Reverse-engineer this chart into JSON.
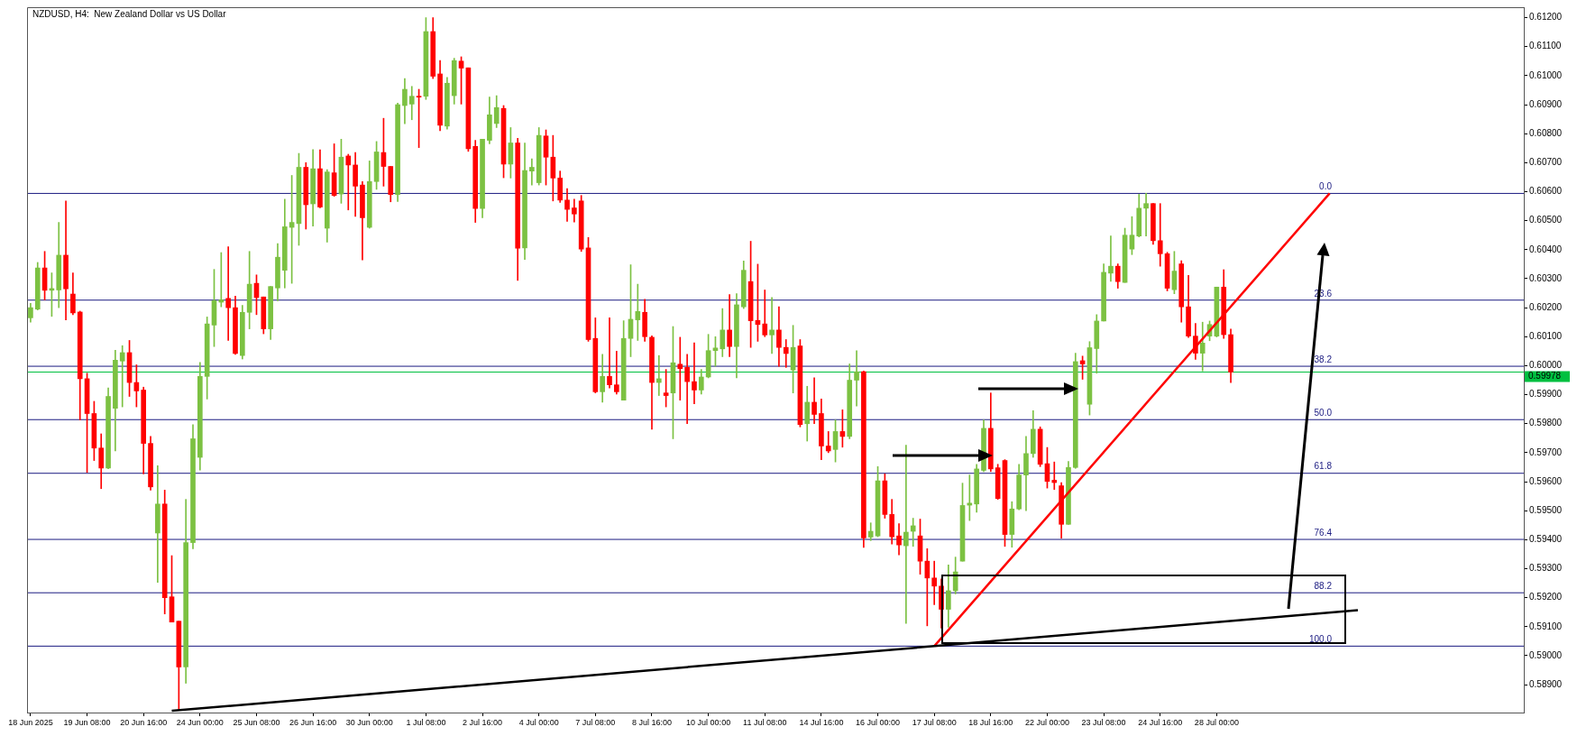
{
  "chart_data": {
    "type": "candlestick",
    "title": "NZDUSD, H4:  New Zealand Dollar vs US Dollar",
    "categories": [
      "18 Jun 2025",
      null,
      null,
      null,
      null,
      null,
      null,
      null,
      "19 Jun 08:00",
      null,
      null,
      null,
      null,
      null,
      null,
      null,
      "20 Jun 16:00",
      null,
      null,
      null,
      null,
      null,
      null,
      null,
      "24 Jun 00:00",
      null,
      null,
      null,
      null,
      null,
      null,
      null,
      "25 Jun 08:00",
      null,
      null,
      null,
      null,
      null,
      null,
      null,
      "26 Jun 16:00",
      null,
      null,
      null,
      null,
      null,
      null,
      null,
      "30 Jun 00:00",
      null,
      null,
      null,
      null,
      null,
      null,
      null,
      "1 Jul 08:00",
      null,
      null,
      null,
      null,
      null,
      null,
      null,
      "2 Jul 16:00",
      null,
      null,
      null,
      null,
      null,
      null,
      null,
      "4 Jul 00:00",
      null,
      null,
      null,
      null,
      null,
      null,
      null,
      "7 Jul 08:00",
      null,
      null,
      null,
      null,
      null,
      null,
      null,
      "8 Jul 16:00",
      null,
      null,
      null,
      null,
      null,
      null,
      null,
      "10 Jul 00:00",
      null,
      null,
      null,
      null,
      null,
      null,
      null,
      "11 Jul 08:00",
      null,
      null,
      null,
      null,
      null,
      null,
      null,
      "14 Jul 16:00",
      null,
      null,
      null,
      null,
      null,
      null,
      null,
      "16 Jul 00:00",
      null,
      null,
      null,
      null,
      null,
      null,
      null,
      "17 Jul 08:00",
      null,
      null,
      null,
      null,
      null,
      null,
      null,
      "18 Jul 16:00",
      null,
      null,
      null,
      null,
      null,
      null,
      null,
      "22 Jul 00:00",
      null,
      null,
      null,
      null,
      null,
      null,
      null,
      "23 Jul 08:00",
      null,
      null,
      null,
      null,
      null,
      null,
      null,
      "24 Jul 16:00",
      null,
      null,
      null,
      null,
      null,
      null,
      null,
      "28 Jul 00:00",
      null,
      null,
      null,
      null,
      null,
      null,
      null,
      null,
      null,
      null,
      null,
      null,
      null,
      null,
      null,
      null,
      null,
      null,
      null,
      null,
      null,
      null,
      null,
      null,
      null,
      null,
      null,
      null,
      null,
      null,
      null,
      null,
      null,
      null,
      null,
      null,
      null,
      null,
      null,
      null,
      null,
      null,
      null
    ],
    "ohlc": [
      [
        0.60165,
        0.60215,
        0.6015,
        0.602
      ],
      [
        0.60195,
        0.60356,
        0.60192,
        0.60337
      ],
      [
        0.60337,
        0.60394,
        0.60227,
        0.6026
      ],
      [
        0.6026,
        0.6032,
        0.6017,
        0.60266
      ],
      [
        0.60261,
        0.60494,
        0.602,
        0.60381
      ],
      [
        0.60381,
        0.60568,
        0.60158,
        0.60265
      ],
      [
        0.60247,
        0.6032,
        0.60176,
        0.60182
      ],
      [
        0.60185,
        0.60188,
        0.59813,
        0.59955
      ],
      [
        0.59955,
        0.59974,
        0.59632,
        0.59835
      ],
      [
        0.59835,
        0.59877,
        0.59673,
        0.59716
      ],
      [
        0.59716,
        0.59765,
        0.59576,
        0.59647
      ],
      [
        0.59647,
        0.59923,
        0.59645,
        0.59894
      ],
      [
        0.59853,
        0.60053,
        0.59706,
        0.60019
      ],
      [
        0.60016,
        0.60069,
        0.59858,
        0.60045
      ],
      [
        0.60045,
        0.60087,
        0.59894,
        0.59942
      ],
      [
        0.59942,
        0.60003,
        0.59858,
        0.59913
      ],
      [
        0.59916,
        0.59926,
        0.59627,
        0.59732
      ],
      [
        0.59732,
        0.59756,
        0.59571,
        0.59582
      ],
      [
        0.59423,
        0.59655,
        0.59253,
        0.59523
      ],
      [
        0.59523,
        0.59571,
        0.59144,
        0.592
      ],
      [
        0.59203,
        0.59345,
        0.59116,
        0.59116
      ],
      [
        0.59119,
        0.59119,
        0.58816,
        0.58961
      ],
      [
        0.58961,
        0.59539,
        0.58905,
        0.5939
      ],
      [
        0.5939,
        0.59797,
        0.59369,
        0.59748
      ],
      [
        0.59684,
        0.60011,
        0.5964,
        0.59963
      ],
      [
        0.59963,
        0.60168,
        0.59885,
        0.60144
      ],
      [
        0.6014,
        0.60332,
        0.60066,
        0.60224
      ],
      [
        0.60219,
        0.6039,
        0.60203,
        0.60227
      ],
      [
        0.60232,
        0.6041,
        0.60087,
        0.602
      ],
      [
        0.602,
        0.6024,
        0.60039,
        0.60042
      ],
      [
        0.60035,
        0.60208,
        0.60023,
        0.60184
      ],
      [
        0.60184,
        0.60394,
        0.60127,
        0.60281
      ],
      [
        0.60284,
        0.60313,
        0.60176,
        0.60235
      ],
      [
        0.60237,
        0.60237,
        0.6011,
        0.60127
      ],
      [
        0.60127,
        0.60273,
        0.6009,
        0.60273
      ],
      [
        0.60268,
        0.60421,
        0.60224,
        0.60374
      ],
      [
        0.60329,
        0.60574,
        0.60268,
        0.60479
      ],
      [
        0.60477,
        0.60656,
        0.60284,
        0.60494
      ],
      [
        0.6049,
        0.60732,
        0.60415,
        0.60684
      ],
      [
        0.60684,
        0.607,
        0.60471,
        0.60555
      ],
      [
        0.60558,
        0.60745,
        0.60481,
        0.60679
      ],
      [
        0.60679,
        0.60744,
        0.60544,
        0.60547
      ],
      [
        0.60474,
        0.60676,
        0.60426,
        0.60668
      ],
      [
        0.60665,
        0.60765,
        0.60584,
        0.60587
      ],
      [
        0.60592,
        0.60781,
        0.6056,
        0.60719
      ],
      [
        0.60723,
        0.60729,
        0.60537,
        0.60692
      ],
      [
        0.60692,
        0.60735,
        0.60515,
        0.60619
      ],
      [
        0.60623,
        0.60635,
        0.60365,
        0.6051
      ],
      [
        0.60477,
        0.60706,
        0.60474,
        0.60635
      ],
      [
        0.60635,
        0.60773,
        0.60608,
        0.60737
      ],
      [
        0.60735,
        0.60853,
        0.60619,
        0.60687
      ],
      [
        0.60687,
        0.60687,
        0.60565,
        0.6059
      ],
      [
        0.6059,
        0.60905,
        0.60566,
        0.609
      ],
      [
        0.60897,
        0.6099,
        0.60834,
        0.60953
      ],
      [
        0.60902,
        0.60963,
        0.60848,
        0.60929
      ],
      [
        0.60929,
        0.60953,
        0.60752,
        0.60926
      ],
      [
        0.60929,
        0.612,
        0.60918,
        0.61152
      ],
      [
        0.61152,
        0.612,
        0.6099,
        0.60998
      ],
      [
        0.61006,
        0.61052,
        0.6081,
        0.60829
      ],
      [
        0.60826,
        0.60994,
        0.60816,
        0.60974
      ],
      [
        0.60931,
        0.6106,
        0.60902,
        0.61052
      ],
      [
        0.6105,
        0.61065,
        0.60902,
        0.61026
      ],
      [
        0.61027,
        0.61027,
        0.60739,
        0.60748
      ],
      [
        0.60756,
        0.60777,
        0.60494,
        0.60542
      ],
      [
        0.60542,
        0.60781,
        0.6051,
        0.60781
      ],
      [
        0.60777,
        0.60926,
        0.60765,
        0.60865
      ],
      [
        0.60835,
        0.60931,
        0.60821,
        0.6089
      ],
      [
        0.60887,
        0.60897,
        0.60648,
        0.60695
      ],
      [
        0.60695,
        0.60821,
        0.60647,
        0.60768
      ],
      [
        0.60768,
        0.60784,
        0.60294,
        0.60405
      ],
      [
        0.60406,
        0.60768,
        0.60366,
        0.60673
      ],
      [
        0.60671,
        0.60713,
        0.60623,
        0.60684
      ],
      [
        0.60631,
        0.60821,
        0.60623,
        0.60794
      ],
      [
        0.60792,
        0.60813,
        0.60623,
        0.60719
      ],
      [
        0.60719,
        0.60794,
        0.60568,
        0.60647
      ],
      [
        0.60647,
        0.60671,
        0.60563,
        0.60571
      ],
      [
        0.60571,
        0.60611,
        0.60498,
        0.60539
      ],
      [
        0.60544,
        0.60574,
        0.60495,
        0.60523
      ],
      [
        0.60568,
        0.60587,
        0.60394,
        0.60402
      ],
      [
        0.60406,
        0.60442,
        0.60084,
        0.6009
      ],
      [
        0.60094,
        0.60165,
        0.59906,
        0.5991
      ],
      [
        0.5991,
        0.60039,
        0.59874,
        0.59963
      ],
      [
        0.59963,
        0.60165,
        0.59923,
        0.59934
      ],
      [
        0.59934,
        0.6005,
        0.59902,
        0.5991
      ],
      [
        0.59881,
        0.60155,
        0.59881,
        0.60094
      ],
      [
        0.60094,
        0.60348,
        0.60031,
        0.6016
      ],
      [
        0.60158,
        0.60281,
        0.60087,
        0.60187
      ],
      [
        0.60184,
        0.60229,
        0.60084,
        0.601
      ],
      [
        0.60098,
        0.60103,
        0.59781,
        0.59942
      ],
      [
        0.59942,
        0.60035,
        0.59897,
        0.59955
      ],
      [
        0.59906,
        0.59987,
        0.59858,
        0.59897
      ],
      [
        0.59906,
        0.60135,
        0.59748,
        0.6001
      ],
      [
        0.60005,
        0.60098,
        0.59881,
        0.5999
      ],
      [
        0.59994,
        0.60039,
        0.598,
        0.59945
      ],
      [
        0.59945,
        0.60079,
        0.59869,
        0.59916
      ],
      [
        0.59916,
        0.59987,
        0.59902,
        0.59961
      ],
      [
        0.59961,
        0.60108,
        0.59958,
        0.60052
      ],
      [
        0.60052,
        0.601,
        0.59998,
        0.60061
      ],
      [
        0.60058,
        0.60197,
        0.60031,
        0.60123
      ],
      [
        0.60123,
        0.60245,
        0.60031,
        0.60066
      ],
      [
        0.60066,
        0.60248,
        0.59958,
        0.6021
      ],
      [
        0.60203,
        0.60361,
        0.60197,
        0.60329
      ],
      [
        0.6029,
        0.60429,
        0.60063,
        0.60155
      ],
      [
        0.60156,
        0.6035,
        0.60084,
        0.60142
      ],
      [
        0.60144,
        0.60261,
        0.601,
        0.60106
      ],
      [
        0.60106,
        0.60235,
        0.60042,
        0.60123
      ],
      [
        0.60123,
        0.60203,
        0.59998,
        0.60063
      ],
      [
        0.60063,
        0.6009,
        0.59994,
        0.60042
      ],
      [
        0.59985,
        0.60139,
        0.59906,
        0.60063
      ],
      [
        0.60068,
        0.6009,
        0.59789,
        0.59797
      ],
      [
        0.598,
        0.59929,
        0.5974,
        0.59874
      ],
      [
        0.59874,
        0.59958,
        0.598,
        0.59832
      ],
      [
        0.59835,
        0.59885,
        0.59676,
        0.59723
      ],
      [
        0.59723,
        0.59773,
        0.597,
        0.59706
      ],
      [
        0.59711,
        0.59813,
        0.59668,
        0.59773
      ],
      [
        0.59773,
        0.59848,
        0.59719,
        0.59756
      ],
      [
        0.59756,
        0.60006,
        0.59748,
        0.5995
      ],
      [
        0.5995,
        0.60052,
        0.59861,
        0.59979
      ],
      [
        0.59979,
        0.59982,
        0.59373,
        0.59406
      ],
      [
        0.59409,
        0.59458,
        0.59397,
        0.59429
      ],
      [
        0.59413,
        0.59652,
        0.5941,
        0.59603
      ],
      [
        0.59603,
        0.59627,
        0.59474,
        0.59487
      ],
      [
        0.59487,
        0.59539,
        0.59385,
        0.5941
      ],
      [
        0.59413,
        0.59455,
        0.59348,
        0.59382
      ],
      [
        0.59379,
        0.59726,
        0.59111,
        0.59426
      ],
      [
        0.59429,
        0.59474,
        0.59377,
        0.59448
      ],
      [
        0.59413,
        0.59471,
        0.59281,
        0.59326
      ],
      [
        0.59326,
        0.59369,
        0.59103,
        0.59268
      ],
      [
        0.59268,
        0.59326,
        0.59176,
        0.5924
      ],
      [
        0.5924,
        0.59265,
        0.59095,
        0.5916
      ],
      [
        0.5916,
        0.59313,
        0.59098,
        0.59224
      ],
      [
        0.59224,
        0.5934,
        0.59213,
        0.59289
      ],
      [
        0.59326,
        0.59595,
        0.59326,
        0.59518
      ],
      [
        0.59519,
        0.59623,
        0.59466,
        0.59526
      ],
      [
        0.59523,
        0.5966,
        0.59495,
        0.59644
      ],
      [
        0.59639,
        0.59813,
        0.59635,
        0.59784
      ],
      [
        0.59784,
        0.59906,
        0.59635,
        0.59644
      ],
      [
        0.59648,
        0.5966,
        0.59539,
        0.59542
      ],
      [
        0.59673,
        0.59676,
        0.59377,
        0.59418
      ],
      [
        0.59418,
        0.59531,
        0.59374,
        0.59506
      ],
      [
        0.59506,
        0.5966,
        0.59503,
        0.59623
      ],
      [
        0.59623,
        0.59756,
        0.595,
        0.59697
      ],
      [
        0.59697,
        0.59845,
        0.59684,
        0.59781
      ],
      [
        0.59781,
        0.59789,
        0.59652,
        0.5966
      ],
      [
        0.59662,
        0.59718,
        0.59578,
        0.59601
      ],
      [
        0.59605,
        0.59668,
        0.59573,
        0.59597
      ],
      [
        0.59586,
        0.59597,
        0.59405,
        0.59453
      ],
      [
        0.59453,
        0.5967,
        0.59453,
        0.59649
      ],
      [
        0.59649,
        0.60043,
        0.59646,
        0.60014
      ],
      [
        0.60017,
        0.60033,
        0.59953,
        0.60006
      ],
      [
        0.59867,
        0.60083,
        0.5983,
        0.60062
      ],
      [
        0.60059,
        0.60176,
        0.59974,
        0.60154
      ],
      [
        0.60154,
        0.60351,
        0.60154,
        0.60322
      ],
      [
        0.60319,
        0.60447,
        0.60291,
        0.60343
      ],
      [
        0.60343,
        0.60351,
        0.60267,
        0.6029
      ],
      [
        0.60287,
        0.60474,
        0.60287,
        0.6045
      ],
      [
        0.60402,
        0.60514,
        0.60383,
        0.6045
      ],
      [
        0.60447,
        0.60591,
        0.60444,
        0.60543
      ],
      [
        0.60543,
        0.60594,
        0.60447,
        0.60559
      ],
      [
        0.60559,
        0.60559,
        0.60418,
        0.60431
      ],
      [
        0.60431,
        0.60559,
        0.60343,
        0.60386
      ],
      [
        0.60386,
        0.60391,
        0.60258,
        0.60267
      ],
      [
        0.60262,
        0.60394,
        0.60248,
        0.60326
      ],
      [
        0.60351,
        0.60362,
        0.6015,
        0.60203
      ],
      [
        0.60203,
        0.60311,
        0.60097,
        0.60102
      ],
      [
        0.60102,
        0.60146,
        0.60022,
        0.60043
      ],
      [
        0.60043,
        0.6015,
        0.59982,
        0.60078
      ],
      [
        0.60102,
        0.60154,
        0.60086,
        0.60142
      ],
      [
        0.60102,
        0.60271,
        0.60099,
        0.60271
      ],
      [
        0.60271,
        0.60331,
        0.60094,
        0.60107
      ],
      [
        0.60107,
        0.60126,
        0.59942,
        0.59978
      ],
      null,
      null,
      null,
      null,
      null,
      null,
      null,
      null,
      null,
      null,
      null,
      null,
      null,
      null,
      null,
      null,
      null,
      null,
      null,
      null,
      null,
      null,
      null,
      null,
      null,
      null,
      null,
      null,
      null,
      null,
      null,
      null,
      null,
      null,
      null,
      null,
      null,
      null,
      null,
      null,
      null
    ],
    "series": [
      {
        "type": "line",
        "color": "#000000",
        "values": [
          null,
          null,
          null,
          null,
          null,
          null,
          null,
          null,
          null,
          null,
          null,
          null,
          null,
          null,
          null,
          null,
          null,
          null,
          null,
          null,
          0.5881,
          null,
          null,
          null,
          null,
          null,
          null,
          null,
          null,
          null,
          null,
          null,
          null,
          null,
          null,
          null,
          null,
          null,
          null,
          null,
          null,
          null,
          null,
          null,
          null,
          null,
          null,
          null,
          null,
          null,
          null,
          null,
          null,
          null,
          null,
          null,
          null,
          null,
          null,
          null,
          null,
          null,
          null,
          null,
          null,
          null,
          null,
          null,
          null,
          null,
          null,
          null,
          null,
          null,
          null,
          null,
          null,
          null,
          null,
          null,
          null,
          null,
          null,
          null,
          null,
          null,
          null,
          null,
          null,
          null,
          null,
          null,
          null,
          null,
          null,
          null,
          null,
          null,
          null,
          null,
          null,
          null,
          null,
          null,
          null,
          null,
          null,
          null,
          null,
          null,
          null,
          null,
          null,
          null,
          null,
          null,
          null,
          null,
          null,
          null,
          null,
          null,
          null,
          null,
          null,
          null,
          null,
          null,
          null,
          null,
          null,
          null,
          null,
          null,
          null,
          null,
          null,
          null,
          null,
          null,
          null,
          null,
          null,
          null,
          null,
          null,
          null,
          null,
          null,
          null,
          null,
          null,
          null,
          null,
          null,
          null,
          null,
          null,
          null,
          null,
          null,
          null,
          null,
          null,
          null,
          null,
          null,
          null,
          null,
          null,
          null,
          null,
          null,
          null,
          null,
          null,
          null,
          null,
          null,
          null,
          null,
          null,
          null,
          null,
          null,
          null,
          null,
          null,
          0.59157,
          null,
          null,
          null,
          null,
          null,
          null,
          null,
          null,
          null,
          null,
          null,
          null,
          null,
          null,
          null,
          null,
          null,
          null,
          null,
          null,
          null,
          null,
          null
        ]
      },
      {
        "type": "line",
        "color": "#ff0000",
        "values": [
          null,
          null,
          null,
          null,
          null,
          null,
          null,
          null,
          null,
          null,
          null,
          null,
          null,
          null,
          null,
          null,
          null,
          null,
          null,
          null,
          null,
          null,
          null,
          null,
          null,
          null,
          null,
          null,
          null,
          null,
          null,
          null,
          null,
          null,
          null,
          null,
          null,
          null,
          null,
          null,
          null,
          null,
          null,
          null,
          null,
          null,
          null,
          null,
          null,
          null,
          null,
          null,
          null,
          null,
          null,
          null,
          null,
          null,
          null,
          null,
          null,
          null,
          null,
          null,
          null,
          null,
          null,
          null,
          null,
          null,
          null,
          null,
          null,
          null,
          null,
          null,
          null,
          null,
          null,
          null,
          null,
          null,
          null,
          null,
          null,
          null,
          null,
          null,
          null,
          null,
          null,
          null,
          null,
          null,
          null,
          null,
          null,
          null,
          null,
          null,
          null,
          null,
          null,
          null,
          null,
          null,
          null,
          null,
          null,
          null,
          null,
          null,
          null,
          null,
          null,
          null,
          null,
          null,
          null,
          null,
          null,
          null,
          null,
          null,
          null,
          null,
          null,
          null,
          0.59033,
          null,
          null,
          null,
          null,
          null,
          null,
          null,
          null,
          null,
          null,
          null,
          null,
          null,
          null,
          null,
          null,
          null,
          null,
          null,
          null,
          null,
          null,
          null,
          null,
          null,
          null,
          null,
          null,
          null,
          null,
          null,
          null,
          null,
          null,
          null,
          null,
          null,
          null,
          null,
          null,
          null,
          null,
          null,
          null,
          null,
          null,
          null,
          null,
          null,
          null,
          null,
          null,
          null,
          null,
          null,
          0.60594,
          null,
          null,
          null,
          null,
          null,
          null,
          null,
          null,
          null,
          null,
          null,
          null,
          null,
          null,
          null,
          null,
          null,
          null,
          null,
          null,
          null,
          null,
          null,
          null,
          null,
          null,
          null
        ]
      }
    ],
    "ylim": [
      0.58804,
      0.61236
    ],
    "yticks": [
      {
        "value": 0.589,
        "label": "0.58900"
      },
      {
        "value": 0.59,
        "label": "0.59000"
      },
      {
        "value": 0.591,
        "label": "0.59100"
      },
      {
        "value": 0.592,
        "label": "0.59200"
      },
      {
        "value": 0.593,
        "label": "0.59300"
      },
      {
        "value": 0.594,
        "label": "0.59400"
      },
      {
        "value": 0.595,
        "label": "0.59500"
      },
      {
        "value": 0.596,
        "label": "0.59600"
      },
      {
        "value": 0.597,
        "label": "0.59700"
      },
      {
        "value": 0.598,
        "label": "0.59800"
      },
      {
        "value": 0.599,
        "label": "0.59900"
      },
      {
        "value": 0.6,
        "label": "0.60000"
      },
      {
        "value": 0.601,
        "label": "0.60100"
      },
      {
        "value": 0.602,
        "label": "0.60200"
      },
      {
        "value": 0.603,
        "label": "0.60300"
      },
      {
        "value": 0.604,
        "label": "0.60400"
      },
      {
        "value": 0.605,
        "label": "0.60500"
      },
      {
        "value": 0.606,
        "label": "0.60600"
      },
      {
        "value": 0.607,
        "label": "0.60700"
      },
      {
        "value": 0.608,
        "label": "0.60800"
      },
      {
        "value": 0.609,
        "label": "0.60900"
      },
      {
        "value": 0.61,
        "label": "0.61000"
      },
      {
        "value": 0.611,
        "label": "0.61100"
      },
      {
        "value": 0.612,
        "label": "0.61200"
      }
    ],
    "ref_lines": [
      {
        "axis": "y",
        "value": 0.60594,
        "color": "#1a1a80"
      },
      {
        "axis": "y",
        "value": 0.60226,
        "color": "#1a1a80"
      },
      {
        "axis": "y",
        "value": 0.59998,
        "color": "#1a1a80"
      },
      {
        "axis": "y",
        "value": 0.59814,
        "color": "#1a1a80"
      },
      {
        "axis": "y",
        "value": 0.59629,
        "color": "#1a1a80"
      },
      {
        "axis": "y",
        "value": 0.59401,
        "color": "#1a1a80"
      },
      {
        "axis": "y",
        "value": 0.59217,
        "color": "#1a1a80"
      },
      {
        "axis": "y",
        "value": 0.59033,
        "color": "#1a1a80"
      },
      {
        "axis": "y",
        "value": 0.59978,
        "label": "0.59978",
        "color": "#00c040"
      }
    ],
    "annotations": [
      {
        "text": "0.0",
        "y": 0.60594
      },
      {
        "text": "23.6",
        "y": 0.60226
      },
      {
        "text": "38.2",
        "y": 0.59998
      },
      {
        "text": "50.0",
        "y": 0.59814
      },
      {
        "text": "61.8",
        "y": 0.59629
      },
      {
        "text": "76.4",
        "y": 0.59401
      },
      {
        "text": "88.2",
        "y": 0.59217
      },
      {
        "text": "100.0",
        "y": 0.59033
      }
    ],
    "grid": false,
    "legend": false
  }
}
